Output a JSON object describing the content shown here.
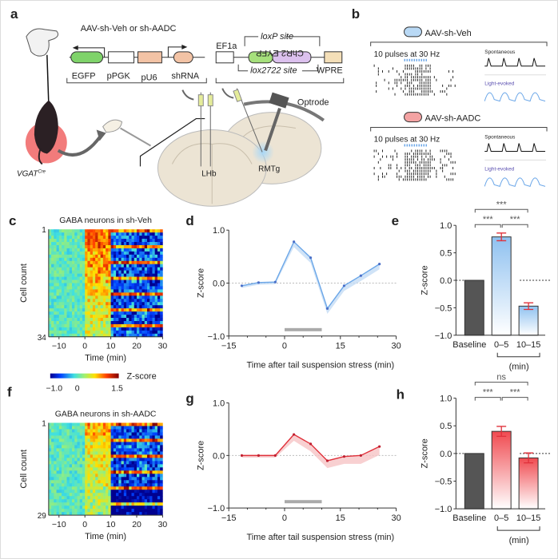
{
  "panel_labels": {
    "a": "a",
    "b": "b",
    "c": "c",
    "d": "d",
    "e": "e",
    "f": "f",
    "g": "g",
    "h": "h"
  },
  "panel_a": {
    "vector1_title": "AAV-sh-Veh or sh-AADC",
    "vector1_elements": [
      "EGFP",
      "pPGK",
      "pU6",
      "shRNA"
    ],
    "vector2_promoter": "EF1a",
    "vector2_insert_mirrored": "ChR2 EYFP",
    "loxp_label": "loxP site",
    "lox2722_label": "lox2722 site",
    "wpre": "WPRE",
    "optrode": "Optrode",
    "lhb": "LHb",
    "rmtg": "RMTg",
    "mouse_line": "VGAT",
    "mouse_line_sup": "Cre",
    "colors": {
      "egfp": "#7fd36a",
      "pu6": "#f3c3a5",
      "chr2": "#dcc1ee",
      "eyfp": "#a6e07c",
      "wpre": "#f4dfb8",
      "mouse_circle": "#f27b7b",
      "brain": "#ece4d4"
    }
  },
  "panel_b": {
    "groups": [
      {
        "name": "AAV-sh-Veh",
        "stim": "10 pulses at 30 Hz",
        "spontaneous": "Spontaneous",
        "evoked": "Light-evoked",
        "color": "#b9d9f5"
      },
      {
        "name": "AAV-sh-AADC",
        "stim": "10 pulses at 30 Hz",
        "spontaneous": "Spontaneous",
        "evoked": "Light-evoked",
        "color": "#f4a3a3"
      }
    ]
  },
  "colorbar": {
    "label": "Z-score",
    "ticks": [
      "−1.0",
      "0",
      "1.5"
    ],
    "range": [
      -1.0,
      1.5
    ],
    "colormap": "jet"
  },
  "chart_data": [
    {
      "id": "c",
      "type": "heatmap",
      "title": "GABA neurons in sh-Veh",
      "ylabel": "Cell count",
      "yticks": [
        "1",
        "34"
      ],
      "rows": 34,
      "xlabel": "Time (min)",
      "xticks": [
        "−10",
        "0",
        "10",
        "20",
        "30"
      ],
      "xlim": [
        -14,
        30
      ]
    },
    {
      "id": "f",
      "type": "heatmap",
      "title": "GABA neurons in sh-AADC",
      "ylabel": "Cell count",
      "yticks": [
        "1",
        "29"
      ],
      "rows": 29,
      "xlabel": "Time (min)",
      "xticks": [
        "−10",
        "0",
        "10",
        "20",
        "30"
      ],
      "xlim": [
        -14,
        30
      ]
    },
    {
      "id": "d",
      "type": "line",
      "xlabel": "Time after tail suspension stress (min)",
      "ylabel": "Z-score",
      "xlim": [
        -15,
        30
      ],
      "ylim": [
        -1,
        1
      ],
      "xticks": [
        "−15",
        "0",
        "15",
        "30"
      ],
      "yticks": [
        "−1.0",
        "0.0",
        "1.0"
      ],
      "x": [
        -11.5,
        -7,
        -2.5,
        2.5,
        7,
        11.5,
        16,
        20.5,
        25.5
      ],
      "y": [
        -0.05,
        0.01,
        0.02,
        0.78,
        0.48,
        -0.48,
        -0.05,
        0.14,
        0.36
      ],
      "sem": [
        0.02,
        0.02,
        0.02,
        0.05,
        0.05,
        0.05,
        0.05,
        0.05,
        0.05
      ],
      "stress_period": [
        0,
        10
      ],
      "color": "#6aa6e8",
      "band_color": "#c4dcf5"
    },
    {
      "id": "e",
      "type": "bar",
      "ylabel": "Z-score",
      "ylim": [
        -1,
        1
      ],
      "yticks": [
        "−1.0",
        "−0.5",
        "0.0",
        "0.5",
        "1.0"
      ],
      "categories": [
        "Baseline",
        "0–5",
        "10–15"
      ],
      "values": [
        0,
        0.79,
        -0.47
      ],
      "errors": [
        0,
        0.07,
        0.06
      ],
      "group_label": "(min)",
      "significance": [
        {
          "pair": [
            0,
            2
          ],
          "label": "***"
        },
        {
          "pair": [
            0,
            1
          ],
          "label": "***"
        },
        {
          "pair": [
            1,
            2
          ],
          "label": "***"
        }
      ],
      "baseline_color": "#555555",
      "fill_color": "#8fc1f0",
      "error_color": "#e0303a"
    },
    {
      "id": "g",
      "type": "line",
      "xlabel": "Time after tail suspension stress (min)",
      "ylabel": "Z-score",
      "xlim": [
        -15,
        30
      ],
      "ylim": [
        -1,
        1
      ],
      "xticks": [
        "−15",
        "0",
        "15",
        "30"
      ],
      "yticks": [
        "−1.0",
        "0.0",
        "1.0"
      ],
      "x": [
        -11.5,
        -7,
        -2.5,
        2.5,
        7,
        11.5,
        16,
        20.5,
        25.5
      ],
      "y": [
        0.0,
        0.0,
        0.0,
        0.4,
        0.22,
        -0.1,
        -0.02,
        0.0,
        0.17
      ],
      "sem": [
        0.02,
        0.02,
        0.02,
        0.06,
        0.07,
        0.07,
        0.07,
        0.08,
        0.08
      ],
      "stress_period": [
        0,
        10
      ],
      "color": "#e0303a",
      "band_color": "#f6c4c6"
    },
    {
      "id": "h",
      "type": "bar",
      "ylabel": "Z-score",
      "ylim": [
        -1,
        1
      ],
      "yticks": [
        "−1.0",
        "−0.5",
        "0.0",
        "0.5",
        "1.0"
      ],
      "categories": [
        "Baseline",
        "0–5",
        "10–15"
      ],
      "values": [
        0,
        0.4,
        -0.08
      ],
      "errors": [
        0,
        0.09,
        0.09
      ],
      "group_label": "(min)",
      "significance": [
        {
          "pair": [
            0,
            2
          ],
          "label": "ns"
        },
        {
          "pair": [
            0,
            1
          ],
          "label": "***"
        },
        {
          "pair": [
            1,
            2
          ],
          "label": "***"
        }
      ],
      "baseline_color": "#555555",
      "fill_color": "#f04a50",
      "error_color": "#e0303a"
    }
  ]
}
